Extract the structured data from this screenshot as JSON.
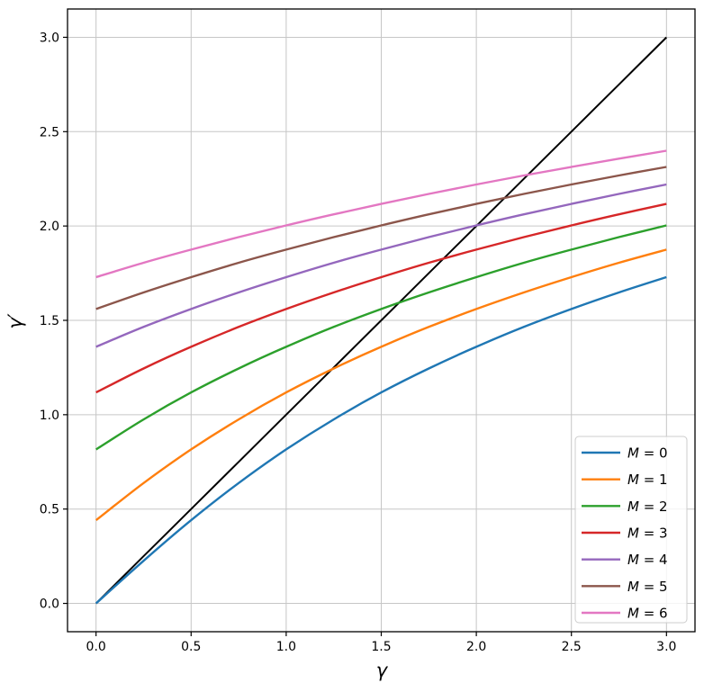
{
  "chart_data": {
    "type": "line",
    "title": "",
    "xlabel": "γ",
    "ylabel": "γ′",
    "xlim": [
      -0.15,
      3.15
    ],
    "ylim": [
      -0.15,
      3.15
    ],
    "grid": true,
    "grid_color": "#c6c6c6",
    "spine_color": "#000000",
    "background_color": "#ffffff",
    "xticks": [
      0,
      0.5,
      1,
      1.5,
      2,
      2.5,
      3
    ],
    "yticks": [
      0,
      0.5,
      1,
      1.5,
      2,
      2.5,
      3
    ],
    "xtick_labels": [
      "0.0",
      "0.5",
      "1.0",
      "1.5",
      "2.0",
      "2.5",
      "3.0"
    ],
    "ytick_labels": [
      "0.0",
      "0.5",
      "1.0",
      "1.5",
      "2.0",
      "2.5",
      "3.0"
    ],
    "x": [
      0,
      0.25,
      0.5,
      0.75,
      1,
      1.25,
      1.5,
      1.75,
      2,
      2.25,
      2.5,
      2.75,
      3
    ],
    "series": [
      {
        "name": "identity-line",
        "legend_label": null,
        "color": "#000000",
        "line_width": 2,
        "y": [
          0,
          0.25,
          0.5,
          0.75,
          1,
          1.25,
          1.5,
          1.75,
          2,
          2.25,
          2.5,
          2.75,
          3
        ]
      },
      {
        "name": "M-0",
        "legend_label": "M = 0",
        "color": "#1f77b4",
        "line_width": 2.4,
        "y": [
          0.0,
          0.226,
          0.441,
          0.638,
          0.816,
          0.975,
          1.118,
          1.245,
          1.36,
          1.465,
          1.56,
          1.648,
          1.729
        ]
      },
      {
        "name": "M-1",
        "legend_label": "M = 1",
        "color": "#ff7f0e",
        "line_width": 2.4,
        "y": [
          0.441,
          0.638,
          0.816,
          0.975,
          1.118,
          1.245,
          1.36,
          1.465,
          1.56,
          1.648,
          1.729,
          1.805,
          1.875
        ]
      },
      {
        "name": "M-2",
        "legend_label": "M = 2",
        "color": "#2ca02c",
        "line_width": 2.4,
        "y": [
          0.816,
          0.975,
          1.118,
          1.245,
          1.36,
          1.465,
          1.56,
          1.648,
          1.729,
          1.805,
          1.875,
          1.941,
          2.003
        ]
      },
      {
        "name": "M-3",
        "legend_label": "M = 3",
        "color": "#d62728",
        "line_width": 2.4,
        "y": [
          1.118,
          1.245,
          1.36,
          1.465,
          1.56,
          1.648,
          1.729,
          1.805,
          1.875,
          1.941,
          2.003,
          2.062,
          2.117
        ]
      },
      {
        "name": "M-4",
        "legend_label": "M = 4",
        "color": "#9467bd",
        "line_width": 2.4,
        "y": [
          1.36,
          1.465,
          1.56,
          1.648,
          1.729,
          1.805,
          1.875,
          1.941,
          2.003,
          2.062,
          2.117,
          2.17,
          2.22
        ]
      },
      {
        "name": "M-5",
        "legend_label": "M = 5",
        "color": "#8c564b",
        "line_width": 2.4,
        "y": [
          1.56,
          1.648,
          1.729,
          1.805,
          1.875,
          1.941,
          2.003,
          2.062,
          2.117,
          2.17,
          2.22,
          2.268,
          2.313
        ]
      },
      {
        "name": "M-6",
        "legend_label": "M = 6",
        "color": "#e377c2",
        "line_width": 2.4,
        "y": [
          1.729,
          1.805,
          1.875,
          1.941,
          2.003,
          2.062,
          2.117,
          2.17,
          2.22,
          2.268,
          2.313,
          2.357,
          2.399
        ]
      }
    ],
    "legend": {
      "position": "lower right",
      "entries": [
        "M = 0",
        "M = 1",
        "M = 2",
        "M = 3",
        "M = 4",
        "M = 5",
        "M = 6"
      ],
      "border_color": "#cccccc",
      "background_color": "#ffffff",
      "background_opacity": 0.8
    }
  }
}
